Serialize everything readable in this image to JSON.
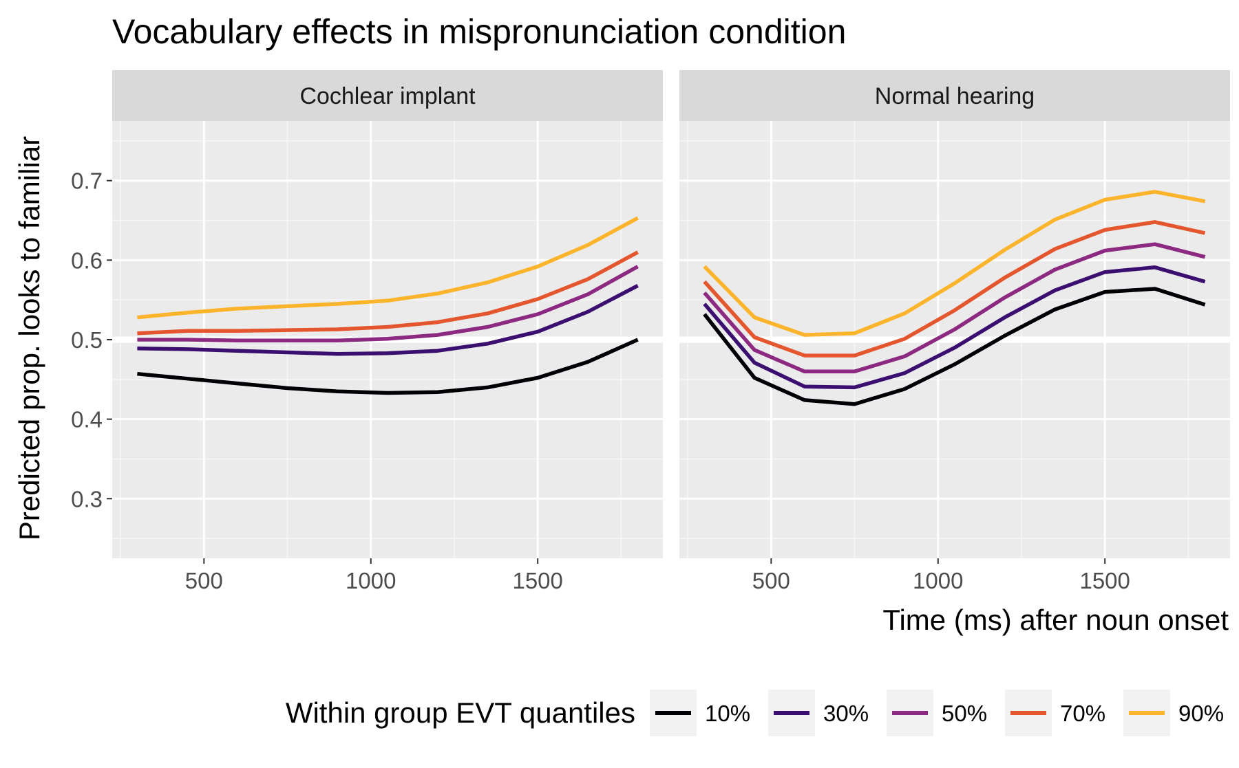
{
  "chart_data": {
    "type": "line",
    "title": "Vocabulary effects in mispronunciation condition",
    "xlabel": "Time (ms) after noun onset",
    "ylabel": "Predicted prop. looks to familiar",
    "xlim": [
      225,
      1875
    ],
    "ylim": [
      0.225,
      0.775
    ],
    "x_ticks": [
      500,
      1000,
      1500
    ],
    "y_ticks": [
      0.3,
      0.4,
      0.5,
      0.6,
      0.7
    ],
    "x_tick_labels": [
      "500",
      "1000",
      "1500"
    ],
    "y_tick_labels": [
      "0.3",
      "0.4",
      "0.5",
      "0.6",
      "0.7"
    ],
    "grid": true,
    "reference_line": {
      "y": 0.5,
      "color": "#ffffff"
    },
    "legend": {
      "title": "Within group EVT quantiles",
      "position": "bottom",
      "entries": [
        "10%",
        "30%",
        "50%",
        "70%",
        "90%"
      ]
    },
    "colors": [
      "#000004",
      "#3b0f70",
      "#8c2981",
      "#e4572e",
      "#fbb42b"
    ],
    "x": [
      300,
      450,
      600,
      750,
      900,
      1050,
      1200,
      1350,
      1500,
      1650,
      1800
    ],
    "facets": [
      {
        "label": "Cochlear implant",
        "series": [
          {
            "name": "10%",
            "values": [
              0.457,
              0.451,
              0.445,
              0.439,
              0.435,
              0.433,
              0.434,
              0.44,
              0.452,
              0.472,
              0.5
            ]
          },
          {
            "name": "30%",
            "values": [
              0.489,
              0.488,
              0.486,
              0.484,
              0.482,
              0.483,
              0.486,
              0.495,
              0.51,
              0.535,
              0.568
            ]
          },
          {
            "name": "50%",
            "values": [
              0.5,
              0.5,
              0.499,
              0.499,
              0.499,
              0.501,
              0.506,
              0.516,
              0.532,
              0.557,
              0.592
            ]
          },
          {
            "name": "70%",
            "values": [
              0.508,
              0.511,
              0.511,
              0.512,
              0.513,
              0.516,
              0.522,
              0.533,
              0.551,
              0.576,
              0.61
            ]
          },
          {
            "name": "90%",
            "values": [
              0.528,
              0.534,
              0.539,
              0.542,
              0.545,
              0.549,
              0.558,
              0.572,
              0.592,
              0.619,
              0.653
            ]
          }
        ]
      },
      {
        "label": "Normal hearing",
        "series": [
          {
            "name": "10%",
            "values": [
              0.532,
              0.452,
              0.424,
              0.419,
              0.438,
              0.469,
              0.505,
              0.538,
              0.56,
              0.564,
              0.544
            ]
          },
          {
            "name": "30%",
            "values": [
              0.545,
              0.471,
              0.441,
              0.44,
              0.458,
              0.49,
              0.528,
              0.562,
              0.585,
              0.591,
              0.573
            ]
          },
          {
            "name": "50%",
            "values": [
              0.559,
              0.487,
              0.46,
              0.46,
              0.479,
              0.513,
              0.553,
              0.588,
              0.612,
              0.62,
              0.604
            ]
          },
          {
            "name": "70%",
            "values": [
              0.573,
              0.503,
              0.48,
              0.48,
              0.501,
              0.537,
              0.578,
              0.614,
              0.638,
              0.648,
              0.634
            ]
          },
          {
            "name": "90%",
            "values": [
              0.592,
              0.528,
              0.506,
              0.508,
              0.533,
              0.571,
              0.613,
              0.651,
              0.676,
              0.686,
              0.674
            ]
          }
        ]
      }
    ]
  }
}
